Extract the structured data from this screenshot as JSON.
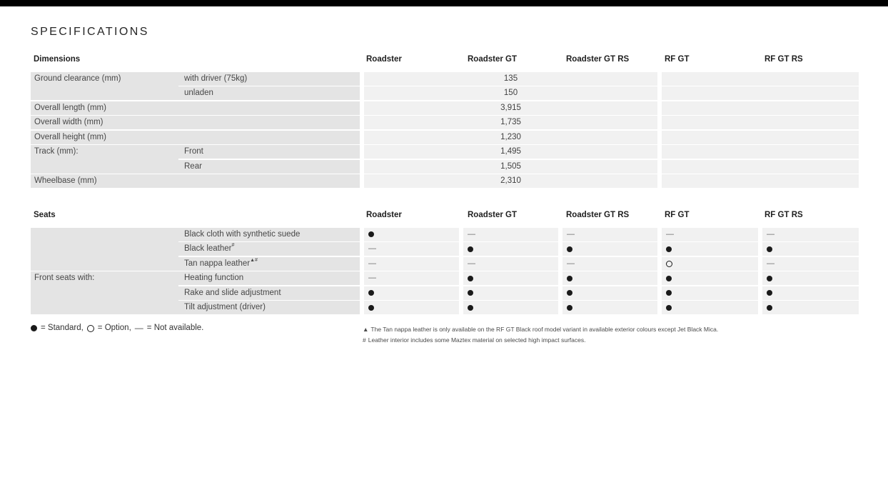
{
  "page": {
    "title": "SPECIFICATIONS"
  },
  "columns": [
    "Roadster",
    "Roadster GT",
    "Roadster GT RS",
    "RF GT",
    "RF GT RS"
  ],
  "dimensions": {
    "section_title": "Dimensions",
    "rows": [
      {
        "label": "Ground clearance (mm)",
        "label_span": 2,
        "sub": "with driver (75kg)",
        "value": "135"
      },
      {
        "sub": "unladen",
        "value": "150"
      },
      {
        "label": "Overall length (mm)",
        "label_span": 1,
        "sub": "",
        "value": "3,915"
      },
      {
        "label": "Overall width (mm)",
        "label_span": 1,
        "sub": "",
        "value": "1,735"
      },
      {
        "label": "Overall height (mm)",
        "label_span": 1,
        "sub": "",
        "value": "1,230"
      },
      {
        "label": "Track (mm):",
        "label_span": 2,
        "sub": "Front",
        "value": "1,495"
      },
      {
        "sub": "Rear",
        "value": "1,505"
      },
      {
        "label": "Wheelbase (mm)",
        "label_span": 1,
        "sub": "",
        "value": "2,310"
      }
    ]
  },
  "seats": {
    "section_title": "Seats",
    "rows": [
      {
        "label": "",
        "label_span": 3,
        "sub": "Black cloth with synthetic suede",
        "sup": "",
        "marks": [
          "standard",
          "not_available",
          "not_available",
          "not_available",
          "not_available"
        ]
      },
      {
        "sub": "Black leather",
        "sup": "#",
        "marks": [
          "not_available",
          "standard",
          "standard",
          "standard",
          "standard"
        ]
      },
      {
        "sub": "Tan nappa leather",
        "sup": "▲#",
        "marks": [
          "not_available",
          "not_available",
          "not_available",
          "option",
          "not_available"
        ]
      },
      {
        "label": "Front seats with:",
        "label_span": 3,
        "sub": "Heating function",
        "sup": "",
        "marks": [
          "not_available",
          "standard",
          "standard",
          "standard",
          "standard"
        ]
      },
      {
        "sub": "Rake and slide adjustment",
        "sup": "",
        "marks": [
          "standard",
          "standard",
          "standard",
          "standard",
          "standard"
        ]
      },
      {
        "sub": "Tilt adjustment (driver)",
        "sup": "",
        "marks": [
          "standard",
          "standard",
          "standard",
          "standard",
          "standard"
        ]
      }
    ]
  },
  "legend": {
    "standard_label": "= Standard,",
    "option_label": "= Option,",
    "na_symbol": "—",
    "na_label": "= Not available."
  },
  "footnotes": [
    {
      "marker": "▲",
      "text": "The Tan nappa leather is only available on the RF GT Black roof model variant in available exterior colours except Jet Black Mica."
    },
    {
      "marker": "#",
      "text": "Leather interior includes some Maztex material on selected high impact surfaces."
    }
  ],
  "colors": {
    "row_label_bg": "#e4e4e4",
    "row_value_bg": "#f1f1f1",
    "mark": "#1a1a1a"
  }
}
